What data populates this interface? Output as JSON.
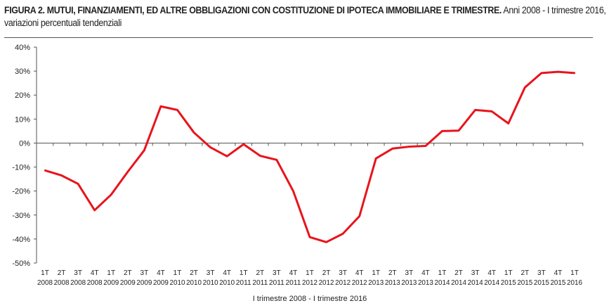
{
  "chart_data": {
    "type": "line",
    "title": "FIGURA 2. MUTUI, FINANZIAMENTI, ED ALTRE OBBLIGAZIONI CON COSTITUZIONE DI IPOTECA IMMOBILIARE E TRIMESTRE.",
    "subtitle": "Anni 2008 - I trimestre 2016, variazioni percentuali tendenziali",
    "xlabel": "I trimestre 2008 - I trimestre 2016",
    "ylabel": "",
    "ylim": [
      -50,
      40
    ],
    "yticks": [
      "40%",
      "30%",
      "20%",
      "10%",
      "0%",
      "-10%",
      "-20%",
      "-30%",
      "-40%",
      "-50%"
    ],
    "ytick_values": [
      40,
      30,
      20,
      10,
      0,
      -10,
      -20,
      -30,
      -40,
      -50
    ],
    "grid": false,
    "categories": [
      [
        "1T",
        "2008"
      ],
      [
        "2T",
        "2008"
      ],
      [
        "3T",
        "2008"
      ],
      [
        "4T",
        "2008"
      ],
      [
        "1T",
        "2009"
      ],
      [
        "2T",
        "2009"
      ],
      [
        "3T",
        "2009"
      ],
      [
        "4T",
        "2009"
      ],
      [
        "1T",
        "2010"
      ],
      [
        "2T",
        "2010"
      ],
      [
        "3T",
        "2010"
      ],
      [
        "4T",
        "2010"
      ],
      [
        "1T",
        "2011"
      ],
      [
        "2T",
        "2011"
      ],
      [
        "3T",
        "2011"
      ],
      [
        "4T",
        "2011"
      ],
      [
        "1T",
        "2012"
      ],
      [
        "2T",
        "2012"
      ],
      [
        "3T",
        "2012"
      ],
      [
        "4T",
        "2012"
      ],
      [
        "1T",
        "2013"
      ],
      [
        "2T",
        "2013"
      ],
      [
        "3T",
        "2013"
      ],
      [
        "4T",
        "2013"
      ],
      [
        "1T",
        "2014"
      ],
      [
        "2T",
        "2014"
      ],
      [
        "3T",
        "2014"
      ],
      [
        "4T",
        "2014"
      ],
      [
        "1T",
        "2015"
      ],
      [
        "2T",
        "2015"
      ],
      [
        "3T",
        "2015"
      ],
      [
        "4T",
        "2015"
      ],
      [
        "1T",
        "2016"
      ]
    ],
    "series": [
      {
        "name": "Variazioni percentuali tendenziali",
        "color": "#e8141c",
        "values": [
          -11.4,
          -13.5,
          -17,
          -28,
          -21.5,
          -12,
          -3,
          15.3,
          13.8,
          4.4,
          -1.8,
          -5.5,
          -0.5,
          -5.3,
          -7,
          -20,
          -39.2,
          -41.3,
          -37.8,
          -30.5,
          -6.4,
          -2.3,
          -1.5,
          -1.2,
          5,
          5.2,
          13.8,
          13.2,
          8.2,
          23.2,
          29.2,
          29.7,
          29.2
        ]
      }
    ]
  }
}
